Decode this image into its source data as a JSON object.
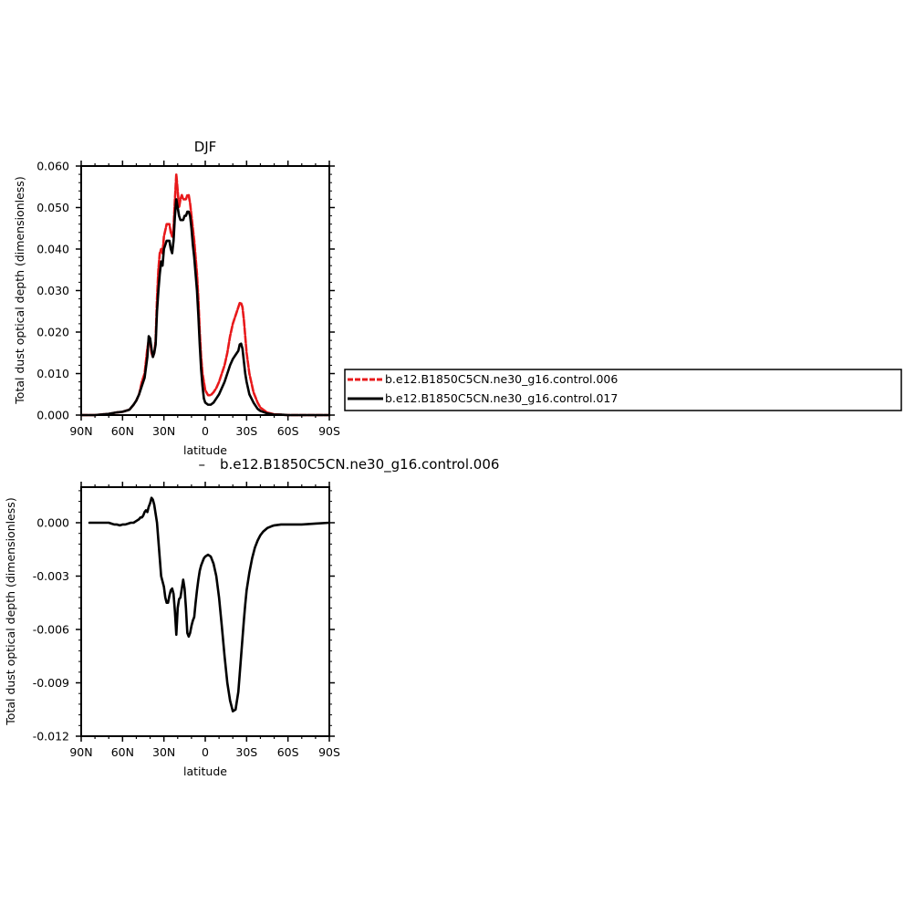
{
  "chart_data": [
    {
      "type": "line",
      "title": "DJF",
      "xlabel": "latitude",
      "ylabel": "Total dust optical depth (dimensionless)",
      "xlim": [
        90,
        -90
      ],
      "ylim": [
        0,
        0.06
      ],
      "x_tick_values": [
        90,
        60,
        30,
        0,
        -30,
        -60,
        -90
      ],
      "x_tick_labels": [
        "90N",
        "60N",
        "30N",
        "0",
        "30S",
        "60S",
        "90S"
      ],
      "y_tick_values": [
        0,
        0.01,
        0.02,
        0.03,
        0.04,
        0.05,
        0.06
      ],
      "y_tick_labels": [
        "0.000",
        "0.010",
        "0.020",
        "0.030",
        "0.040",
        "0.050",
        "0.060"
      ],
      "legend": "outside-right",
      "series": [
        {
          "name": "b.e12.B1850C5CN.ne30_g16.control.006",
          "color": "#e8191b",
          "style": "dashed",
          "x": [
            90,
            80,
            70,
            65,
            60,
            55,
            52,
            50,
            48,
            46,
            44,
            42,
            41,
            40,
            39,
            38,
            37,
            36,
            35,
            34,
            33,
            32,
            31,
            30,
            28,
            26,
            25,
            24,
            23,
            22,
            21,
            20,
            19,
            18,
            17,
            16,
            15,
            14,
            13,
            12,
            11,
            10,
            9,
            8,
            7,
            6,
            5,
            4,
            3,
            2,
            1,
            0,
            -2,
            -4,
            -6,
            -8,
            -10,
            -12,
            -14,
            -16,
            -18,
            -20,
            -22,
            -24,
            -25,
            -26,
            -27,
            -28,
            -29,
            -30,
            -32,
            -35,
            -38,
            -40,
            -45,
            -50,
            -55,
            -60,
            -70,
            -80,
            -90
          ],
          "y": [
            0.0,
            0.0,
            0.0003,
            0.0006,
            0.0008,
            0.0013,
            0.0025,
            0.0035,
            0.005,
            0.008,
            0.01,
            0.016,
            0.018,
            0.0175,
            0.015,
            0.014,
            0.015,
            0.018,
            0.028,
            0.035,
            0.039,
            0.04,
            0.039,
            0.043,
            0.046,
            0.046,
            0.044,
            0.043,
            0.045,
            0.052,
            0.058,
            0.054,
            0.05,
            0.052,
            0.053,
            0.052,
            0.052,
            0.052,
            0.053,
            0.053,
            0.051,
            0.048,
            0.045,
            0.042,
            0.038,
            0.034,
            0.028,
            0.02,
            0.014,
            0.01,
            0.008,
            0.006,
            0.0048,
            0.0048,
            0.0055,
            0.0065,
            0.008,
            0.01,
            0.012,
            0.015,
            0.019,
            0.022,
            0.024,
            0.026,
            0.027,
            0.027,
            0.026,
            0.023,
            0.019,
            0.015,
            0.01,
            0.0055,
            0.003,
            0.0018,
            0.0006,
            0.0002,
            0.0001,
            0.0,
            0.0,
            0.0,
            0.0
          ]
        },
        {
          "name": "b.e12.B1850C5CN.ne30_g16.control.017",
          "color": "#000000",
          "style": "solid",
          "x": [
            90,
            80,
            70,
            65,
            60,
            55,
            52,
            50,
            48,
            46,
            44,
            42,
            41,
            40,
            39,
            38,
            37,
            36,
            35,
            34,
            33,
            32,
            31,
            30,
            28,
            26,
            25,
            24,
            23,
            22,
            21,
            20,
            19,
            18,
            17,
            16,
            15,
            14,
            13,
            12,
            11,
            10,
            9,
            8,
            7,
            6,
            5,
            4,
            3,
            2,
            1,
            0,
            -2,
            -4,
            -6,
            -8,
            -10,
            -12,
            -14,
            -16,
            -18,
            -20,
            -22,
            -24,
            -25,
            -26,
            -27,
            -28,
            -29,
            -30,
            -32,
            -35,
            -38,
            -40,
            -45,
            -50,
            -55,
            -60,
            -70,
            -80,
            -90
          ],
          "y": [
            0.0,
            0.0,
            0.0003,
            0.0006,
            0.0008,
            0.0013,
            0.0025,
            0.0035,
            0.005,
            0.007,
            0.009,
            0.014,
            0.019,
            0.0185,
            0.016,
            0.014,
            0.015,
            0.017,
            0.025,
            0.03,
            0.034,
            0.037,
            0.036,
            0.04,
            0.042,
            0.042,
            0.04,
            0.039,
            0.042,
            0.048,
            0.052,
            0.05,
            0.048,
            0.047,
            0.047,
            0.047,
            0.048,
            0.048,
            0.049,
            0.049,
            0.048,
            0.045,
            0.041,
            0.038,
            0.034,
            0.03,
            0.024,
            0.017,
            0.011,
            0.007,
            0.004,
            0.003,
            0.0025,
            0.0025,
            0.003,
            0.004,
            0.005,
            0.0065,
            0.008,
            0.01,
            0.012,
            0.0135,
            0.0145,
            0.0155,
            0.017,
            0.0172,
            0.016,
            0.013,
            0.01,
            0.008,
            0.005,
            0.003,
            0.0015,
            0.001,
            0.0004,
            0.0001,
            0.0001,
            0.0,
            0.0,
            0.0,
            0.0
          ]
        }
      ]
    },
    {
      "type": "line",
      "title": "b.e12.B1850C5CN.ne30_g16.control.006",
      "title_prefix": "–",
      "xlabel": "latitude",
      "ylabel": "Total dust optical depth (dimensionless)",
      "xlim": [
        90,
        -90
      ],
      "ylim": [
        -0.012,
        0.002
      ],
      "x_tick_values": [
        90,
        60,
        30,
        0,
        -30,
        -60,
        -90
      ],
      "x_tick_labels": [
        "90N",
        "60N",
        "30N",
        "0",
        "30S",
        "60S",
        "90S"
      ],
      "y_tick_values": [
        0.0,
        -0.003,
        -0.006,
        -0.009,
        -0.012
      ],
      "y_tick_labels": [
        "0.000",
        "-0.003",
        "-0.006",
        "-0.009",
        "-0.012"
      ],
      "series": [
        {
          "color": "#000000",
          "style": "solid",
          "x": [
            84,
            80,
            76,
            72,
            70,
            68,
            66,
            64,
            62,
            60,
            58,
            56,
            54,
            52,
            50,
            48,
            47,
            46,
            45,
            44,
            43,
            42,
            41,
            40,
            39,
            38,
            37,
            36,
            35,
            34,
            33,
            32,
            31,
            30,
            29,
            28,
            27,
            26,
            25,
            24,
            23,
            22,
            21,
            20,
            19,
            18,
            17,
            16,
            15,
            14,
            13,
            12,
            11,
            10,
            9,
            8,
            7,
            6,
            5,
            4,
            3,
            2,
            1,
            0,
            -2,
            -4,
            -6,
            -8,
            -10,
            -12,
            -14,
            -16,
            -18,
            -20,
            -22,
            -24,
            -25,
            -26,
            -27,
            -28,
            -29,
            -30,
            -32,
            -34,
            -36,
            -38,
            -40,
            -42,
            -45,
            -48,
            -50,
            -55,
            -60,
            -70,
            -80,
            -90
          ],
          "y": [
            0.0,
            0.0,
            0.0,
            0.0,
            0.0,
            -5e-05,
            -0.0001,
            -0.0001,
            -0.00015,
            -0.0001,
            -0.0001,
            -5e-05,
            0.0,
            0.0,
            0.0001,
            0.0002,
            0.0003,
            0.0003,
            0.0004,
            0.0006,
            0.0007,
            0.0006,
            0.0009,
            0.0011,
            0.0014,
            0.0013,
            0.001,
            0.0005,
            0.0,
            -0.001,
            -0.002,
            -0.003,
            -0.0033,
            -0.0036,
            -0.0042,
            -0.0045,
            -0.0045,
            -0.0041,
            -0.0038,
            -0.0037,
            -0.004,
            -0.005,
            -0.0063,
            -0.0048,
            -0.0043,
            -0.0042,
            -0.0037,
            -0.0032,
            -0.0037,
            -0.0048,
            -0.0062,
            -0.0064,
            -0.0062,
            -0.0058,
            -0.0055,
            -0.0053,
            -0.0045,
            -0.0038,
            -0.0032,
            -0.0027,
            -0.0024,
            -0.0022,
            -0.002,
            -0.0019,
            -0.0018,
            -0.0019,
            -0.0023,
            -0.003,
            -0.0042,
            -0.0058,
            -0.0075,
            -0.009,
            -0.01,
            -0.0106,
            -0.0105,
            -0.0095,
            -0.0085,
            -0.0075,
            -0.0065,
            -0.0055,
            -0.0046,
            -0.0038,
            -0.0028,
            -0.002,
            -0.0014,
            -0.001,
            -0.0007,
            -0.0005,
            -0.0003,
            -0.0002,
            -0.00015,
            -0.0001,
            -0.0001,
            -0.0001,
            -5e-05,
            0.0
          ]
        }
      ]
    }
  ]
}
